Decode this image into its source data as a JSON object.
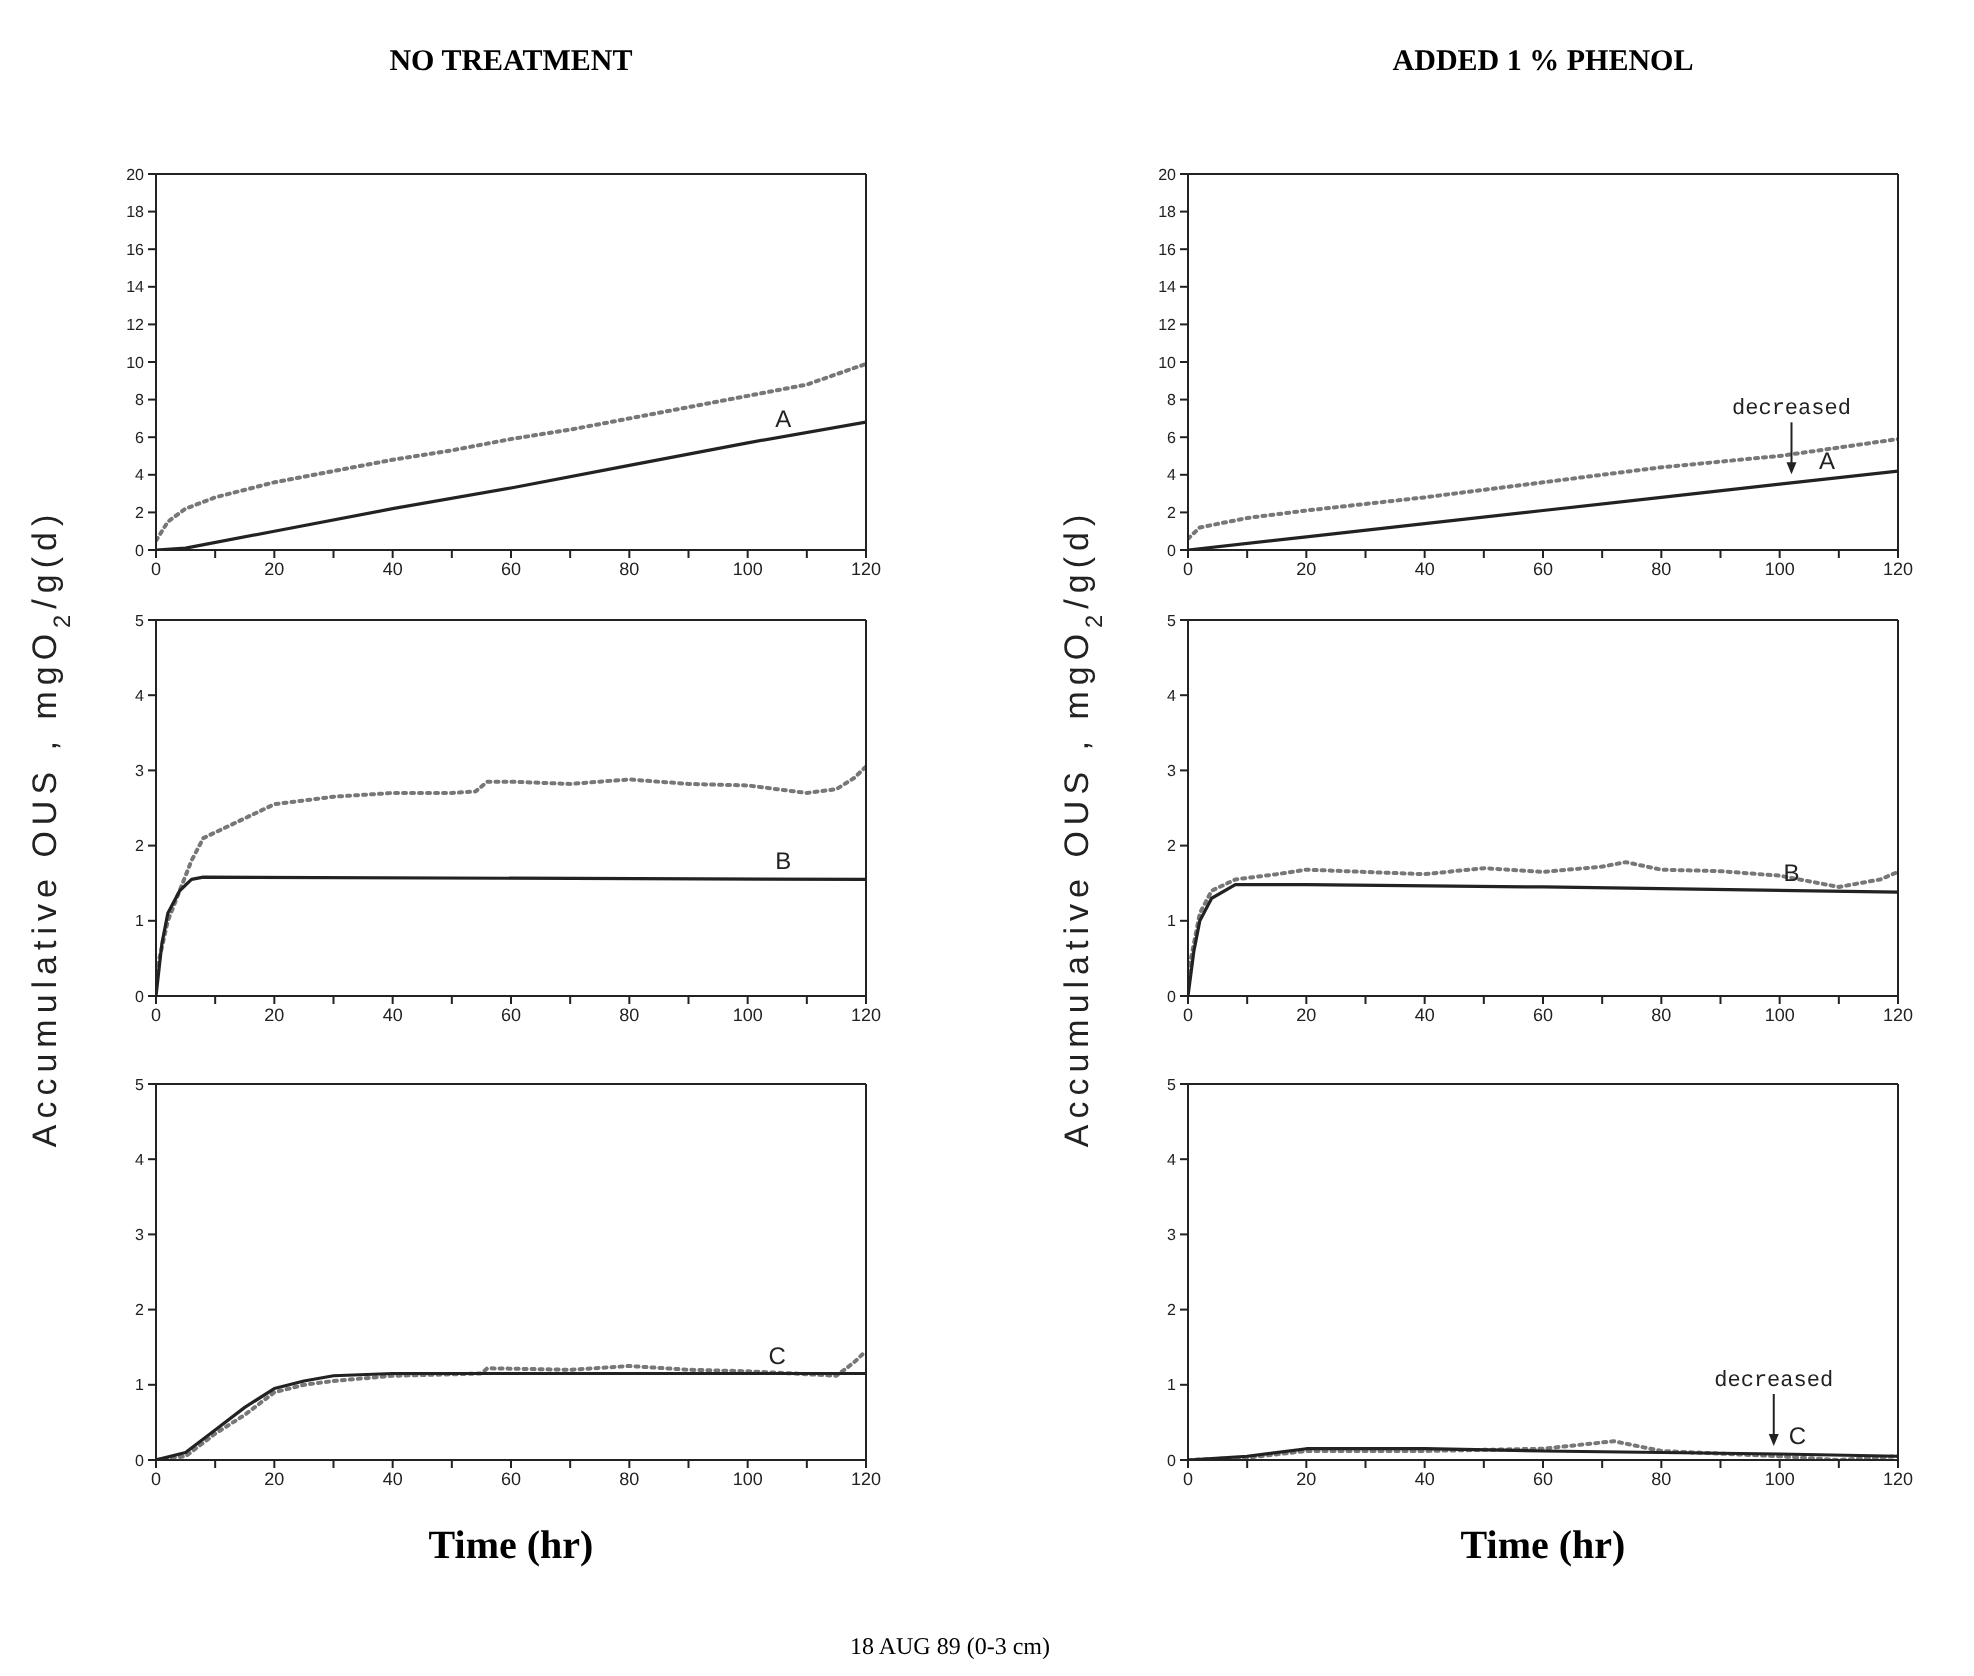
{
  "chart_data": [
    {
      "type": "line",
      "title": "NO TREATMENT",
      "xlim": [
        0,
        120
      ],
      "xticks": [
        0,
        {
          "value": 10,
          "label": null
        },
        20,
        {
          "value": 30,
          "label": null
        },
        40,
        {
          "value": 50,
          "label": null
        },
        60,
        {
          "value": 70,
          "label": null
        },
        80,
        {
          "value": 90,
          "label": null
        },
        100,
        {
          "value": 110,
          "label": null
        },
        120
      ],
      "ylim": [
        0,
        20
      ],
      "yticks": [
        0,
        2,
        4,
        6,
        8,
        10,
        12,
        14,
        16,
        18,
        20
      ],
      "marker": "none",
      "series": [
        {
          "color": "#777777",
          "line_style": "dotted",
          "x": [
            0,
            2,
            5,
            10,
            20,
            30,
            40,
            50,
            60,
            70,
            80,
            90,
            100,
            110,
            120
          ],
          "values": [
            0.5,
            1.5,
            2.2,
            2.8,
            3.6,
            4.2,
            4.8,
            5.3,
            5.9,
            6.4,
            7.0,
            7.6,
            8.2,
            8.8,
            9.9
          ]
        },
        {
          "color": "#222222",
          "line_style": "solid",
          "x": [
            0,
            5,
            20,
            40,
            60,
            80,
            100,
            120
          ],
          "values": [
            0,
            0.1,
            1.0,
            2.2,
            3.3,
            4.5,
            5.7,
            6.8
          ]
        }
      ],
      "annotations": [
        {
          "text": "A",
          "x": 106,
          "y": 6.0
        }
      ]
    },
    {
      "type": "line",
      "title": "ADDED 1 % PHENOL",
      "xlim": [
        0,
        120
      ],
      "xticks": [
        0,
        {
          "value": 10,
          "label": null
        },
        20,
        {
          "value": 30,
          "label": null
        },
        40,
        {
          "value": 50,
          "label": null
        },
        60,
        {
          "value": 70,
          "label": null
        },
        80,
        {
          "value": 90,
          "label": null
        },
        100,
        {
          "value": 110,
          "label": null
        },
        120
      ],
      "ylim": [
        0,
        20
      ],
      "yticks": [
        0,
        2,
        4,
        6,
        8,
        10,
        12,
        14,
        16,
        18,
        20
      ],
      "marker": "none",
      "series": [
        {
          "color": "#777777",
          "line_style": "dotted",
          "x": [
            0,
            2,
            10,
            20,
            40,
            60,
            80,
            100,
            120
          ],
          "values": [
            0.6,
            1.2,
            1.7,
            2.1,
            2.8,
            3.6,
            4.4,
            5.0,
            5.9
          ]
        },
        {
          "color": "#222222",
          "line_style": "solid",
          "x": [
            0,
            20,
            40,
            60,
            80,
            100,
            120
          ],
          "values": [
            0,
            0.7,
            1.4,
            2.1,
            2.8,
            3.5,
            4.2
          ]
        }
      ],
      "annotations": [
        {
          "text": "A",
          "x": 108,
          "y": 3.8
        },
        {
          "text": "decreased",
          "x": 102,
          "y": 3.6
        }
      ]
    },
    {
      "type": "line",
      "ylabel": "Accumulative OUS , mgO$_{2}$/g(d)",
      "xlim": [
        0,
        120
      ],
      "xticks": [
        0,
        {
          "value": 10,
          "label": null
        },
        20,
        {
          "value": 30,
          "label": null
        },
        40,
        {
          "value": 50,
          "label": null
        },
        60,
        {
          "value": 70,
          "label": null
        },
        80,
        {
          "value": 90,
          "label": null
        },
        100,
        {
          "value": 110,
          "label": null
        },
        120
      ],
      "ylim": [
        0,
        5
      ],
      "yticks": [
        0,
        1,
        2,
        3,
        4,
        5
      ],
      "marker": "none",
      "series": [
        {
          "color": "#777777",
          "line_style": "dotted",
          "x": [
            0,
            2,
            4,
            6,
            8,
            12,
            16,
            20,
            30,
            40,
            50,
            54,
            56,
            60,
            70,
            80,
            90,
            100,
            105,
            110,
            115,
            118,
            120
          ],
          "values": [
            0.3,
            1.0,
            1.4,
            1.8,
            2.1,
            2.25,
            2.4,
            2.55,
            2.65,
            2.7,
            2.7,
            2.72,
            2.85,
            2.85,
            2.82,
            2.88,
            2.82,
            2.8,
            2.75,
            2.7,
            2.75,
            2.9,
            3.05
          ]
        },
        {
          "color": "#222222",
          "line_style": "solid",
          "x": [
            0,
            1,
            2,
            4,
            6,
            8,
            120
          ],
          "values": [
            0,
            0.7,
            1.1,
            1.4,
            1.55,
            1.58,
            1.55
          ]
        }
      ],
      "annotations": [
        {
          "text": "B",
          "x": 106,
          "y": 1.55
        }
      ]
    },
    {
      "type": "line",
      "ylabel": "Accumulative OUS , mgO$_{2}$/g(d)",
      "xlim": [
        0,
        120
      ],
      "xticks": [
        0,
        {
          "value": 10,
          "label": null
        },
        20,
        {
          "value": 30,
          "label": null
        },
        40,
        {
          "value": 50,
          "label": null
        },
        60,
        {
          "value": 70,
          "label": null
        },
        80,
        {
          "value": 90,
          "label": null
        },
        100,
        {
          "value": 110,
          "label": null
        },
        120
      ],
      "ylim": [
        0,
        5
      ],
      "yticks": [
        0,
        1,
        2,
        3,
        4,
        5
      ],
      "marker": "none",
      "series": [
        {
          "color": "#777777",
          "line_style": "dotted",
          "x": [
            0,
            2,
            4,
            8,
            15,
            20,
            30,
            40,
            50,
            60,
            70,
            74,
            80,
            90,
            100,
            110,
            117,
            120
          ],
          "values": [
            0.3,
            1.1,
            1.4,
            1.55,
            1.62,
            1.68,
            1.65,
            1.62,
            1.7,
            1.65,
            1.72,
            1.78,
            1.68,
            1.66,
            1.6,
            1.45,
            1.55,
            1.65
          ]
        },
        {
          "color": "#222222",
          "line_style": "solid",
          "x": [
            0,
            1,
            2,
            4,
            8,
            20,
            60,
            120
          ],
          "values": [
            0,
            0.6,
            1.0,
            1.3,
            1.48,
            1.48,
            1.45,
            1.38
          ]
        }
      ],
      "annotations": [
        {
          "text": "B",
          "x": 102,
          "y": 1.4
        }
      ]
    },
    {
      "type": "line",
      "xlabel": "Time (hr)",
      "xlim": [
        0,
        120
      ],
      "xticks": [
        0,
        {
          "value": 10,
          "label": null
        },
        20,
        {
          "value": 30,
          "label": null
        },
        40,
        {
          "value": 50,
          "label": null
        },
        60,
        {
          "value": 70,
          "label": null
        },
        80,
        {
          "value": 90,
          "label": null
        },
        100,
        {
          "value": 110,
          "label": null
        },
        120
      ],
      "ylim": [
        0,
        5
      ],
      "yticks": [
        0,
        1,
        2,
        3,
        4,
        5
      ],
      "marker": "none",
      "series": [
        {
          "color": "#777777",
          "line_style": "dotted",
          "x": [
            0,
            5,
            10,
            15,
            20,
            25,
            30,
            40,
            55,
            56,
            70,
            80,
            90,
            100,
            108,
            115,
            118,
            120
          ],
          "values": [
            0,
            0.05,
            0.35,
            0.6,
            0.9,
            1.0,
            1.05,
            1.12,
            1.15,
            1.22,
            1.2,
            1.25,
            1.2,
            1.18,
            1.15,
            1.12,
            1.3,
            1.45
          ]
        },
        {
          "color": "#222222",
          "line_style": "solid",
          "x": [
            0,
            5,
            10,
            15,
            20,
            25,
            30,
            40,
            120
          ],
          "values": [
            0,
            0.1,
            0.4,
            0.7,
            0.95,
            1.05,
            1.12,
            1.15,
            1.15
          ]
        }
      ],
      "annotations": [
        {
          "text": "C",
          "x": 105,
          "y": 1.15
        }
      ]
    },
    {
      "type": "line",
      "xlabel": "Time (hr)",
      "xlim": [
        0,
        120
      ],
      "xticks": [
        0,
        {
          "value": 10,
          "label": null
        },
        20,
        {
          "value": 30,
          "label": null
        },
        40,
        {
          "value": 50,
          "label": null
        },
        60,
        {
          "value": 70,
          "label": null
        },
        80,
        {
          "value": 90,
          "label": null
        },
        100,
        {
          "value": 110,
          "label": null
        },
        120
      ],
      "ylim": [
        0,
        5
      ],
      "yticks": [
        0,
        1,
        2,
        3,
        4,
        5
      ],
      "marker": "none",
      "series": [
        {
          "color": "#777777",
          "line_style": "dotted",
          "x": [
            0,
            10,
            20,
            40,
            60,
            72,
            80,
            100,
            110,
            120
          ],
          "values": [
            0,
            0.03,
            0.12,
            0.12,
            0.15,
            0.25,
            0.12,
            0.05,
            0,
            0.05
          ]
        },
        {
          "color": "#222222",
          "line_style": "solid",
          "x": [
            0,
            10,
            20,
            40,
            60,
            80,
            100,
            120
          ],
          "values": [
            0,
            0.05,
            0.15,
            0.15,
            0.12,
            0.1,
            0.08,
            0.05
          ]
        }
      ],
      "annotations": [
        {
          "text": "C",
          "x": 103,
          "y": 0.08
        },
        {
          "text": "decreased",
          "x": 99,
          "y": 0.08
        },
        "18 AUG 89 (0-3 cm)"
      ]
    }
  ]
}
